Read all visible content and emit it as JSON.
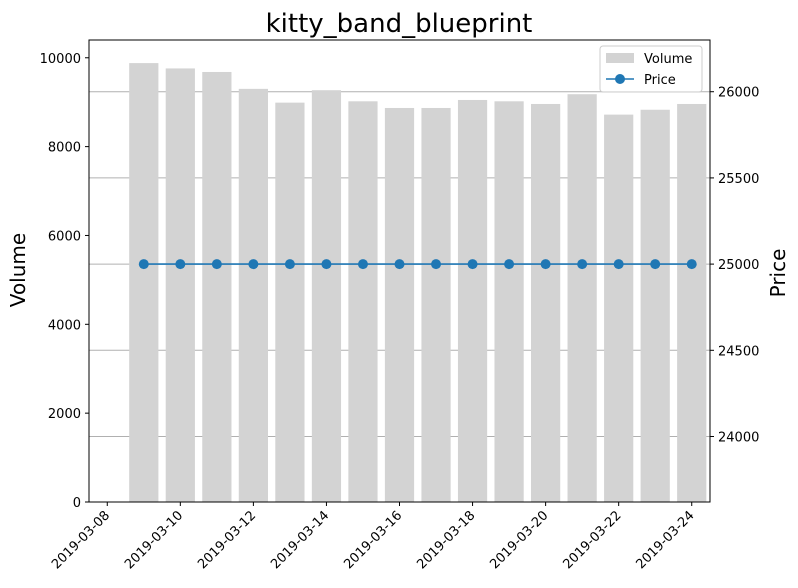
{
  "chart_data": {
    "type": "bar+line",
    "title": "kitty_band_blueprint",
    "ylabel_left": "Volume",
    "ylabel_right": "Price",
    "dates": [
      "2019-03-09",
      "2019-03-10",
      "2019-03-11",
      "2019-03-12",
      "2019-03-13",
      "2019-03-14",
      "2019-03-15",
      "2019-03-16",
      "2019-03-17",
      "2019-03-18",
      "2019-03-19",
      "2019-03-20",
      "2019-03-21",
      "2019-03-22",
      "2019-03-23",
      "2019-03-24"
    ],
    "xlim": [
      "2019-03-07T12:00",
      "2019-03-24T12:00"
    ],
    "x_ticks": [
      "2019-03-08",
      "2019-03-10",
      "2019-03-12",
      "2019-03-14",
      "2019-03-16",
      "2019-03-18",
      "2019-03-20",
      "2019-03-22",
      "2019-03-24"
    ],
    "series": [
      {
        "name": "Volume",
        "kind": "bar",
        "axis": "left",
        "color": "#d3d3d3",
        "values": [
          9880,
          9760,
          9680,
          9300,
          8990,
          9270,
          9020,
          8870,
          8870,
          9050,
          9020,
          8960,
          9180,
          8720,
          8830,
          8960
        ]
      },
      {
        "name": "Price",
        "kind": "line",
        "axis": "right",
        "color": "#1f77b4",
        "values": [
          25000,
          25000,
          25000,
          25000,
          25000,
          25000,
          25000,
          25000,
          25000,
          25000,
          25000,
          25000,
          25000,
          25000,
          25000,
          25000
        ]
      }
    ],
    "ylim_left": [
      0,
      10400
    ],
    "yticks_left": [
      0,
      2000,
      4000,
      6000,
      8000,
      10000
    ],
    "ylim_right": [
      23620,
      26300
    ],
    "yticks_right": [
      24000,
      24500,
      25000,
      25500,
      26000
    ],
    "grid": "horizontal, right axis ticks",
    "legend_position": "top-right"
  }
}
